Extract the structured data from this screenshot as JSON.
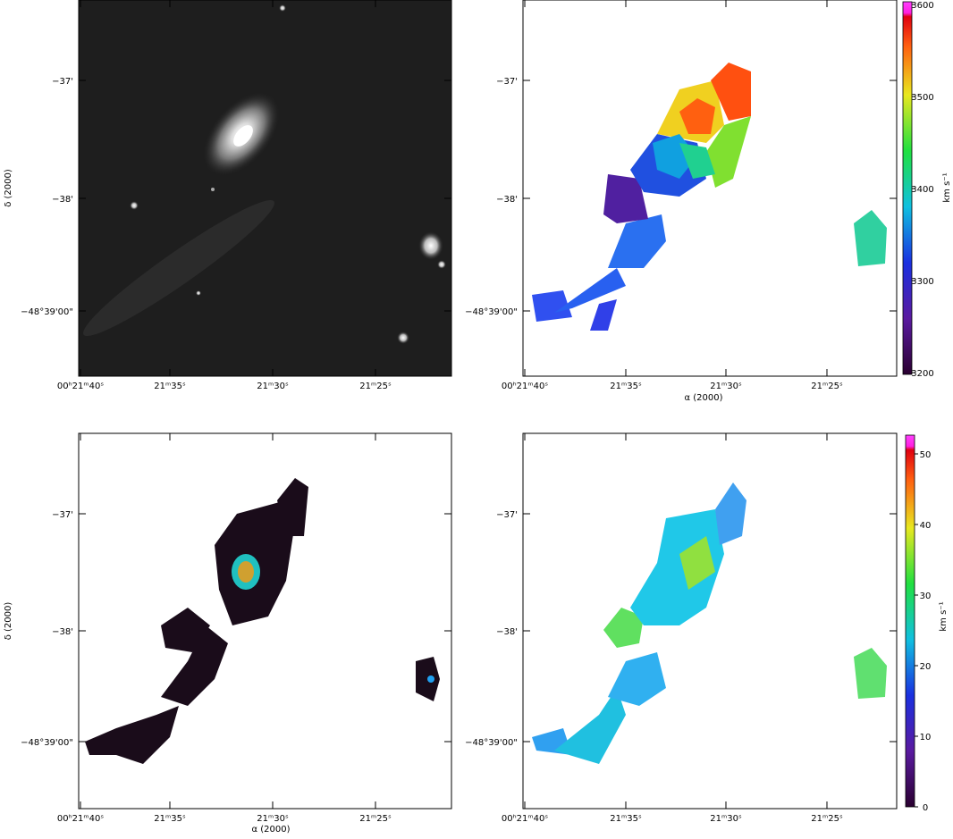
{
  "panels": [
    {
      "yticks": [
        "−37'",
        "−38'",
        "−48°39'00\""
      ],
      "xticks": [
        "00ʰ21ᵐ40ˢ",
        "21ᵐ35ˢ",
        "21ᵐ30ˢ",
        "21ᵐ25ˢ"
      ],
      "ylabel": "δ (2000)"
    },
    {
      "yticks": [
        "−37'",
        "−38'",
        "−48°39'00\""
      ],
      "xticks": [
        "00ʰ21ᵐ40ˢ",
        "21ᵐ35ˢ",
        "21ᵐ30ˢ",
        "21ᵐ25ˢ"
      ],
      "xlabel": "α (2000)",
      "colorbar": {
        "ticks": [
          3200,
          3300,
          3400,
          3500,
          3600
        ],
        "label": "km s⁻¹"
      }
    },
    {
      "yticks": [
        "−37'",
        "−38'",
        "−48°39'00\""
      ],
      "xticks": [
        "00ʰ21ᵐ40ˢ",
        "21ᵐ35ˢ",
        "21ᵐ30ˢ",
        "21ᵐ25ˢ"
      ],
      "ylabel": "δ (2000)",
      "xlabel": "α (2000)"
    },
    {
      "yticks": [
        "−37'",
        "−38'",
        "−48°39'00\""
      ],
      "xticks": [
        "00ʰ21ᵐ40ˢ",
        "21ᵐ35ˢ",
        "21ᵐ30ˢ",
        "21ᵐ25ˢ"
      ],
      "colorbar": {
        "ticks": [
          0,
          10,
          20,
          30,
          40,
          50
        ],
        "label": "km s⁻¹"
      }
    }
  ]
}
